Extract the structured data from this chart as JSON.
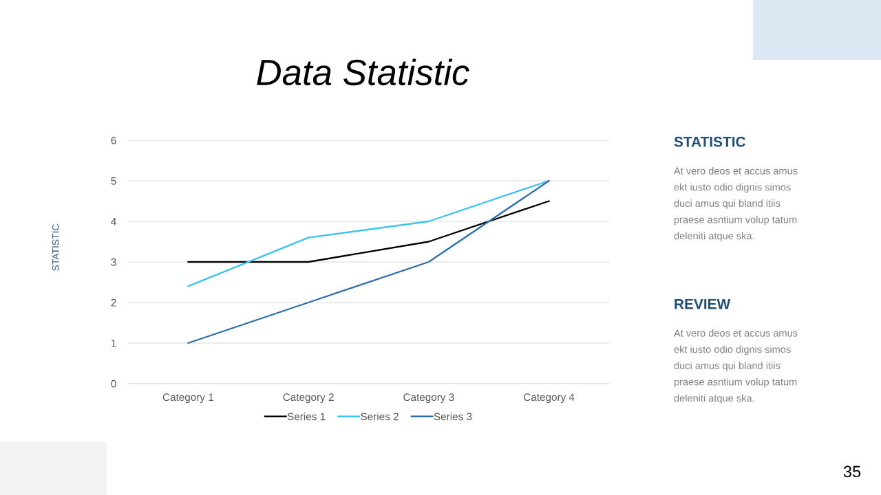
{
  "chart_data": {
    "type": "line",
    "title": "Data Statistic",
    "categories": [
      "Category 1",
      "Category 2",
      "Category 3",
      "Category 4"
    ],
    "series": [
      {
        "name": "Series 1",
        "color": "#000000",
        "values": [
          3,
          3,
          3.5,
          4.5
        ]
      },
      {
        "name": "Series 2",
        "color": "#3cc3f0",
        "values": [
          2.4,
          3.6,
          4,
          5
        ]
      },
      {
        "name": "Series 3",
        "color": "#2e6fa8",
        "values": [
          1,
          2,
          3,
          5
        ]
      }
    ],
    "ylim": [
      0,
      6
    ],
    "yticks": [
      0,
      1,
      2,
      3,
      4,
      5,
      6
    ],
    "grid": "y",
    "legend": "bottom",
    "marker": "none",
    "line_style": "solid",
    "annotations": [
      "STATISTIC",
      "STATISTIC",
      "At vero deos et accus amus\nekt iusto odio dignis simos\nduci amus qui bland itiis\npraese asntium volup tatum\ndeleniti atque ska.",
      "REVIEW",
      "At vero deos et accus amus\nekt iusto odio dignis simos\nduci amus qui bland itiis\npraese asntium volup tatum\ndeleniti atque ska.",
      "35"
    ]
  }
}
